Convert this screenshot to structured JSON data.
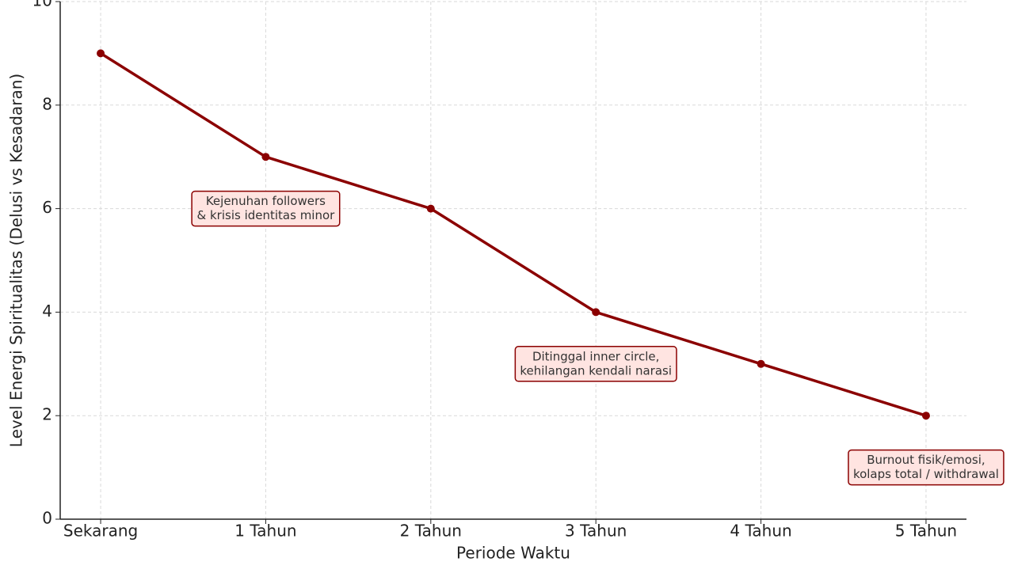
{
  "chart_data": {
    "type": "line",
    "x_label": "Periode Waktu",
    "y_label": "Level Energi Spiritualitas (Delusi vs Kesadaran)",
    "categories": [
      "Sekarang",
      "1 Tahun",
      "2 Tahun",
      "3 Tahun",
      "4 Tahun",
      "5 Tahun"
    ],
    "series": [
      {
        "name": "Level Energi",
        "color": "#8b0000",
        "values": [
          9,
          7,
          6,
          4,
          3,
          2
        ]
      }
    ],
    "ylim": [
      0,
      10
    ],
    "yticks": [
      0,
      2,
      4,
      6,
      8,
      10
    ],
    "grid": true,
    "annotations": [
      {
        "lines": [
          "Kejenuhan followers",
          "& krisis identitas minor"
        ]
      },
      {
        "lines": [
          "Ditinggal inner circle,",
          "kehilangan kendali narasi"
        ]
      },
      {
        "lines": [
          "Burnout fisik/emosi,",
          "kolaps total / withdrawal"
        ]
      }
    ]
  }
}
